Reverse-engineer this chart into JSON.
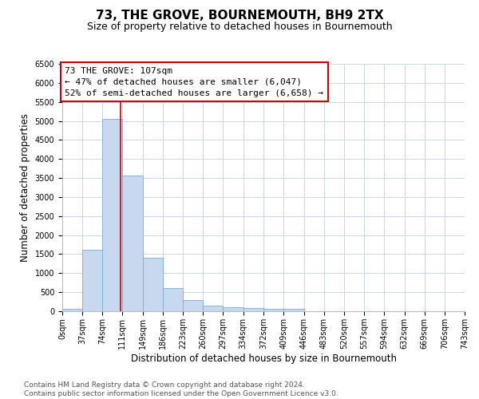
{
  "title": "73, THE GROVE, BOURNEMOUTH, BH9 2TX",
  "subtitle": "Size of property relative to detached houses in Bournemouth",
  "xlabel": "Distribution of detached houses by size in Bournemouth",
  "ylabel": "Number of detached properties",
  "bin_edges": [
    0,
    37,
    74,
    111,
    149,
    186,
    223,
    260,
    297,
    334,
    372,
    409,
    446,
    483,
    520,
    557,
    594,
    632,
    669,
    706,
    743
  ],
  "bin_labels": [
    "0sqm",
    "37sqm",
    "74sqm",
    "111sqm",
    "149sqm",
    "186sqm",
    "223sqm",
    "260sqm",
    "297sqm",
    "334sqm",
    "372sqm",
    "409sqm",
    "446sqm",
    "483sqm",
    "520sqm",
    "557sqm",
    "594sqm",
    "632sqm",
    "669sqm",
    "706sqm",
    "743sqm"
  ],
  "counts": [
    70,
    1620,
    5060,
    3570,
    1400,
    610,
    290,
    145,
    110,
    80,
    55,
    55,
    0,
    0,
    0,
    0,
    0,
    0,
    0,
    0
  ],
  "bar_color": "#c8d9ef",
  "bar_edge_color": "#7aadd4",
  "property_line_x": 107,
  "property_line_color": "#cc0000",
  "annotation_line1": "73 THE GROVE: 107sqm",
  "annotation_line2": "← 47% of detached houses are smaller (6,047)",
  "annotation_line3": "52% of semi-detached houses are larger (6,658) →",
  "annotation_box_facecolor": "#ffffff",
  "annotation_box_edgecolor": "#cc0000",
  "ylim_max": 6500,
  "yticks": [
    0,
    500,
    1000,
    1500,
    2000,
    2500,
    3000,
    3500,
    4000,
    4500,
    5000,
    5500,
    6000,
    6500
  ],
  "footer_line1": "Contains HM Land Registry data © Crown copyright and database right 2024.",
  "footer_line2": "Contains public sector information licensed under the Open Government Licence v3.0.",
  "background_color": "#ffffff",
  "grid_color": "#ccd5e6",
  "title_fontsize": 11,
  "subtitle_fontsize": 9,
  "ylabel_fontsize": 8.5,
  "xlabel_fontsize": 8.5,
  "tick_fontsize": 7,
  "annot_fontsize": 8,
  "footer_fontsize": 6.5
}
